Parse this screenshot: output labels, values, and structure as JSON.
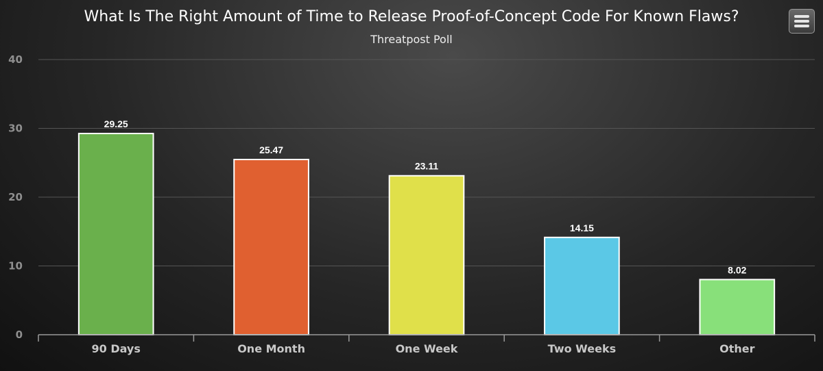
{
  "chart_data": {
    "type": "bar",
    "title": "What Is The Right Amount of Time to Release Proof-of-Concept Code For Known Flaws?",
    "subtitle": "Threatpost Poll",
    "categories": [
      "90 Days",
      "One Month",
      "One Week",
      "Two Weeks",
      "Other"
    ],
    "values": [
      29.25,
      25.47,
      23.11,
      14.15,
      8.02
    ],
    "colors": [
      "#6ab04c",
      "#e06030",
      "#e0e04a",
      "#5bc8e6",
      "#88e07a"
    ],
    "xlabel": "",
    "ylabel": "",
    "ylim": [
      0,
      40
    ],
    "yticks": [
      0,
      10,
      20,
      30,
      40
    ],
    "grid": true,
    "data_labels": true
  },
  "menu": {
    "icon": "hamburger-menu-icon"
  }
}
